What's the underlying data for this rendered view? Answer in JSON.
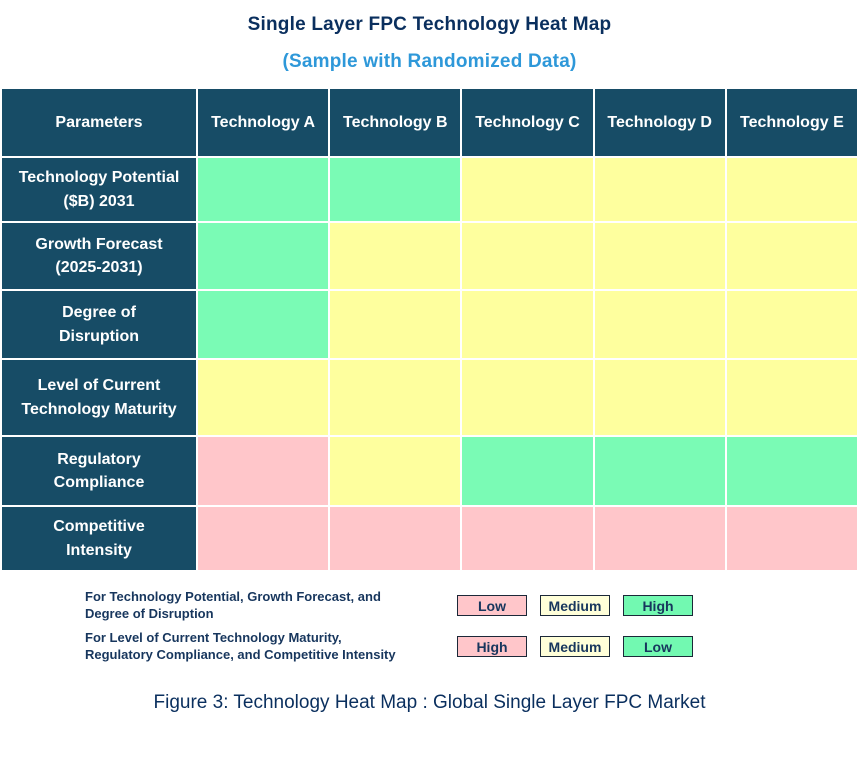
{
  "title": "Single Layer FPC Technology Heat Map",
  "subtitle": "(Sample with Randomized Data)",
  "caption": "Figure 3: Technology Heat Map : Global Single Layer FPC Market",
  "colors": {
    "header_bg": "#174c66",
    "header_text": "#ffffff",
    "cell_green": "#7afbb5",
    "cell_yellow": "#feff9e",
    "cell_pink": "#ffc6ca",
    "legend_green": "#72f9b1",
    "legend_yellow": "#ffffd9",
    "legend_pink": "#ffc6ca",
    "title_text": "#0a2f5e",
    "subtitle_text": "#2e98d9",
    "legend_text": "#17365d"
  },
  "chart_data": {
    "type": "heatmap",
    "title": "Single Layer FPC Technology Heat Map",
    "subtitle": "(Sample with Randomized Data)",
    "columns": [
      "Parameters",
      "Technology A",
      "Technology B",
      "Technology C",
      "Technology D",
      "Technology E"
    ],
    "rows": [
      {
        "parameter": "Technology Potential\n($B) 2031",
        "values": [
          "High",
          "High",
          "Medium",
          "Medium",
          "Medium"
        ],
        "cell_colors": [
          "green",
          "green",
          "yellow",
          "yellow",
          "yellow"
        ]
      },
      {
        "parameter": "Growth Forecast\n(2025-2031)",
        "values": [
          "High",
          "Medium",
          "Medium",
          "Medium",
          "Medium"
        ],
        "cell_colors": [
          "green",
          "yellow",
          "yellow",
          "yellow",
          "yellow"
        ]
      },
      {
        "parameter": "Degree of\nDisruption",
        "values": [
          "High",
          "Medium",
          "Medium",
          "Medium",
          "Medium"
        ],
        "cell_colors": [
          "green",
          "yellow",
          "yellow",
          "yellow",
          "yellow"
        ]
      },
      {
        "parameter": "Level of Current\nTechnology Maturity",
        "values": [
          "Medium",
          "Medium",
          "Medium",
          "Medium",
          "Medium"
        ],
        "cell_colors": [
          "yellow",
          "yellow",
          "yellow",
          "yellow",
          "yellow"
        ]
      },
      {
        "parameter": "Regulatory\nCompliance",
        "values": [
          "High",
          "Medium",
          "Low",
          "Low",
          "Low"
        ],
        "cell_colors": [
          "pink",
          "yellow",
          "green",
          "green",
          "green"
        ]
      },
      {
        "parameter": "Competitive\nIntensity",
        "values": [
          "High",
          "High",
          "High",
          "High",
          "High"
        ],
        "cell_colors": [
          "pink",
          "pink",
          "pink",
          "pink",
          "pink"
        ]
      }
    ],
    "color_encoding": {
      "positive_rows": {
        "green": "High",
        "yellow": "Medium",
        "pink": "Low"
      },
      "inverted_rows": {
        "pink": "High",
        "yellow": "Medium",
        "green": "Low"
      }
    }
  },
  "legend": {
    "rows": [
      {
        "text": "For Technology Potential, Growth Forecast, and\nDegree of Disruption",
        "boxes": [
          {
            "label": "Low",
            "color": "pink"
          },
          {
            "label": "Medium",
            "color": "yellow"
          },
          {
            "label": "High",
            "color": "green"
          }
        ]
      },
      {
        "text": "For Level of Current Technology Maturity,\nRegulatory Compliance, and Competitive Intensity",
        "boxes": [
          {
            "label": "High",
            "color": "pink"
          },
          {
            "label": "Medium",
            "color": "yellow"
          },
          {
            "label": "Low",
            "color": "green"
          }
        ]
      }
    ]
  }
}
